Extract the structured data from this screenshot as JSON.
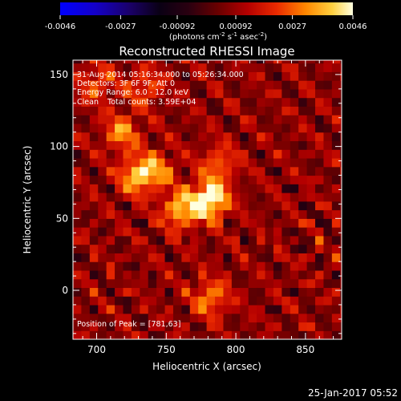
{
  "chart_data": {
    "type": "heatmap",
    "title": "Reconstructed RHESSI Image",
    "xlabel": "Heliocentric X (arcsec)",
    "ylabel": "Heliocentric Y (arcsec)",
    "x_ticks": [
      "700",
      "750",
      "800",
      "850"
    ],
    "y_ticks": [
      "0",
      "50",
      "100",
      "150"
    ],
    "xlim": [
      683,
      876
    ],
    "ylim": [
      -34,
      160
    ],
    "colorbar": {
      "ticks": [
        "-0.0046",
        "-0.0027",
        "-0.00092",
        "0.00092",
        "0.0027",
        "0.0046"
      ],
      "range": [
        -0.0046,
        0.0046
      ],
      "unit_prefix": "(photons cm",
      "unit_sup1": "-2",
      "unit_mid1": " s",
      "unit_sup2": "-1",
      "unit_mid2": " asec",
      "unit_sup3": "-2",
      "unit_suffix": ")"
    },
    "sources": [
      {
        "x": 781,
        "y": 63,
        "peak": 0.0046
      },
      {
        "x": 760,
        "y": 56,
        "peak": 0.003
      },
      {
        "x": 729,
        "y": 80,
        "peak": 0.003
      },
      {
        "x": 718,
        "y": 110,
        "peak": 0.0024
      },
      {
        "x": 744,
        "y": 84,
        "peak": 0.002
      },
      {
        "x": 788,
        "y": 88,
        "peak": 0.002
      },
      {
        "x": 782,
        "y": -5,
        "peak": 0.0024
      },
      {
        "x": 700,
        "y": 144,
        "peak": 0.0018
      },
      {
        "x": 735,
        "y": 142,
        "peak": 0.0018
      }
    ],
    "annotations": {
      "time": "31-Aug-2014 05:16:34.000 to 05:26:34.000",
      "detectors": "Detectors: 3F 6F 9F, Att 0",
      "energy": "Energy Range: 6.0 - 12.0 keV",
      "clean": "Clean",
      "counts": "Total counts: 3.59E+04",
      "peak": "Position of Peak = [781,63]"
    }
  },
  "footer": {
    "timestamp": "25-Jan-2017 05:52"
  },
  "colors": {
    "background": "#000000",
    "foreground": "#ffffff"
  }
}
